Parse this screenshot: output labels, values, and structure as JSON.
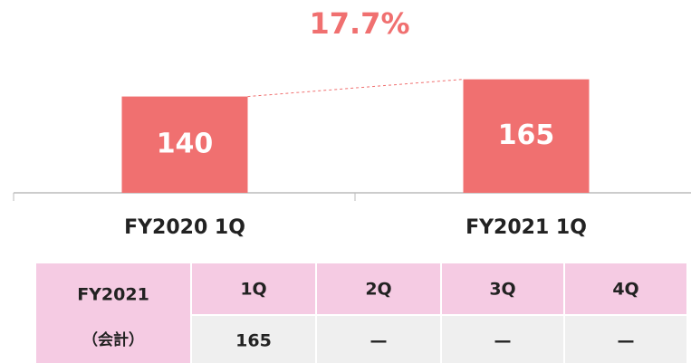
{
  "chart_data": {
    "type": "bar",
    "categories": [
      "FY2020 1Q",
      "FY2021 1Q"
    ],
    "values": [
      140,
      165
    ],
    "color": "#f07070",
    "ylim": [
      0,
      200
    ],
    "annotation": "17.7%"
  },
  "table": {
    "row_header": [
      "FY2021",
      "（会計）"
    ],
    "columns": [
      "1Q",
      "2Q",
      "3Q",
      "4Q"
    ],
    "values": [
      "165",
      "—",
      "—",
      "—"
    ]
  }
}
